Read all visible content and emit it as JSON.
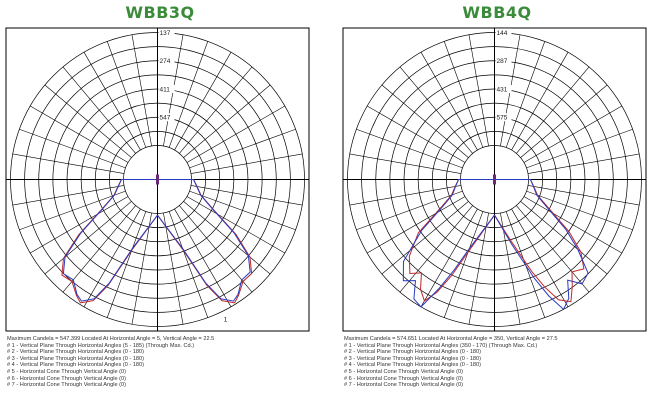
{
  "panels": [
    {
      "title": "WBB3Q",
      "rings": [
        "547",
        "411",
        "274",
        "137"
      ],
      "end_label": "1",
      "notes": [
        "Maximum Candela = 547.399   Located At Horizontal Angle = 5, Vertical Angle = 22.5",
        "# 1 - Vertical Plane Through Horizontal Angles (5 - 185) (Through Max. Cd.)",
        "# 2 - Vertical Plane Through Horizontal Angles (0 - 180)",
        "# 3 - Vertical Plane Through Horizontal Angles (0 - 180)",
        "# 4 - Vertical Plane Through Horizontal Angles (0 - 180)",
        "# 5 - Horizontal Cone Through Vertical Angle (0)",
        "# 6 - Horizontal Cone Through Vertical Angle (0)",
        "# 7 - Horizontal Cone Through Vertical Angle (0)"
      ]
    },
    {
      "title": "WBB4Q",
      "rings": [
        "575",
        "431",
        "287",
        "144"
      ],
      "end_label": "",
      "notes": [
        "Maximum Candela = 574.651   Located At Horizontal Angle = 350, Vertical Angle = 27.5",
        "# 1 - Vertical Plane Through Horizontal Angles (350 - 170) (Through Max. Cd.)",
        "# 2 - Vertical Plane Through Horizontal Angles (0 - 180)",
        "# 3 - Vertical Plane Through Horizontal Angles (0 - 180)",
        "# 4 - Vertical Plane Through Horizontal Angles (0 - 180)",
        "# 5 - Horizontal Cone Through Vertical Angle (0)",
        "# 6 - Horizontal Cone Through Vertical Angle (0)",
        "# 7 - Horizontal Cone Through Vertical Angle (0)"
      ]
    }
  ],
  "colors": {
    "title": "#3a8c3a",
    "grid": "#000000",
    "series_red": "#c0282a",
    "series_blue": "#2a3ac0"
  },
  "chart_data": [
    {
      "type": "polar",
      "title": "WBB3Q",
      "rmax": 547.399,
      "rings": [
        137,
        274,
        411,
        547
      ],
      "angle_step_deg": 10,
      "series": [
        {
          "color": "red",
          "points": [
            [
              0,
              8
            ],
            [
              20,
              200
            ],
            [
              25,
              400
            ],
            [
              28,
              500
            ],
            [
              32,
              540
            ],
            [
              35,
              520
            ],
            [
              40,
              480
            ],
            [
              45,
              480
            ],
            [
              50,
              420
            ],
            [
              55,
              300
            ],
            [
              62,
              140
            ],
            [
              70,
              60
            ],
            [
              80,
              30
            ],
            [
              90,
              10
            ],
            [
              270,
              10
            ],
            [
              280,
              30
            ],
            [
              290,
              60
            ],
            [
              298,
              140
            ],
            [
              305,
              300
            ],
            [
              310,
              430
            ],
            [
              315,
              490
            ],
            [
              320,
              480
            ],
            [
              325,
              520
            ],
            [
              328,
              540
            ],
            [
              332,
              500
            ],
            [
              335,
              400
            ],
            [
              340,
              200
            ],
            [
              360,
              8
            ]
          ]
        },
        {
          "color": "blue",
          "points": [
            [
              0,
              8
            ],
            [
              20,
              190
            ],
            [
              25,
              390
            ],
            [
              28,
              490
            ],
            [
              32,
              530
            ],
            [
              35,
              515
            ],
            [
              40,
              470
            ],
            [
              45,
              470
            ],
            [
              50,
              410
            ],
            [
              55,
              290
            ],
            [
              62,
              135
            ],
            [
              70,
              58
            ],
            [
              80,
              28
            ],
            [
              90,
              10
            ],
            [
              270,
              10
            ],
            [
              280,
              28
            ],
            [
              290,
              58
            ],
            [
              298,
              135
            ],
            [
              305,
              290
            ],
            [
              310,
              420
            ],
            [
              315,
              480
            ],
            [
              320,
              470
            ],
            [
              325,
              515
            ],
            [
              328,
              530
            ],
            [
              332,
              490
            ],
            [
              335,
              390
            ],
            [
              340,
              190
            ],
            [
              360,
              8
            ]
          ]
        }
      ]
    },
    {
      "type": "polar",
      "title": "WBB4Q",
      "rmax": 574.651,
      "rings": [
        144,
        287,
        431,
        575
      ],
      "angle_step_deg": 10,
      "series": [
        {
          "color": "red",
          "points": [
            [
              0,
              8
            ],
            [
              15,
              150
            ],
            [
              22,
              330
            ],
            [
              25,
              430
            ],
            [
              28,
              520
            ],
            [
              32,
              560
            ],
            [
              36,
              500
            ],
            [
              40,
              440
            ],
            [
              45,
              470
            ],
            [
              50,
              400
            ],
            [
              55,
              290
            ],
            [
              62,
              140
            ],
            [
              70,
              60
            ],
            [
              80,
              30
            ],
            [
              90,
              10
            ],
            [
              270,
              10
            ],
            [
              280,
              30
            ],
            [
              290,
              60
            ],
            [
              298,
              140
            ],
            [
              305,
              300
            ],
            [
              312,
              410
            ],
            [
              318,
              470
            ],
            [
              322,
              430
            ],
            [
              326,
              500
            ],
            [
              330,
              540
            ],
            [
              333,
              470
            ],
            [
              336,
              360
            ],
            [
              340,
              220
            ],
            [
              360,
              8
            ]
          ]
        },
        {
          "color": "blue",
          "points": [
            [
              0,
              8
            ],
            [
              15,
              170
            ],
            [
              22,
              370
            ],
            [
              25,
              480
            ],
            [
              28,
              575
            ],
            [
              32,
              540
            ],
            [
              36,
              460
            ],
            [
              40,
              520
            ],
            [
              45,
              500
            ],
            [
              50,
              380
            ],
            [
              55,
              270
            ],
            [
              62,
              130
            ],
            [
              70,
              55
            ],
            [
              80,
              28
            ],
            [
              90,
              10
            ],
            [
              270,
              10
            ],
            [
              280,
              28
            ],
            [
              290,
              55
            ],
            [
              298,
              130
            ],
            [
              305,
              280
            ],
            [
              312,
              450
            ],
            [
              318,
              520
            ],
            [
              322,
              480
            ],
            [
              326,
              560
            ],
            [
              330,
              575
            ],
            [
              333,
              450
            ],
            [
              336,
              330
            ],
            [
              340,
              200
            ],
            [
              360,
              8
            ]
          ]
        }
      ]
    }
  ]
}
